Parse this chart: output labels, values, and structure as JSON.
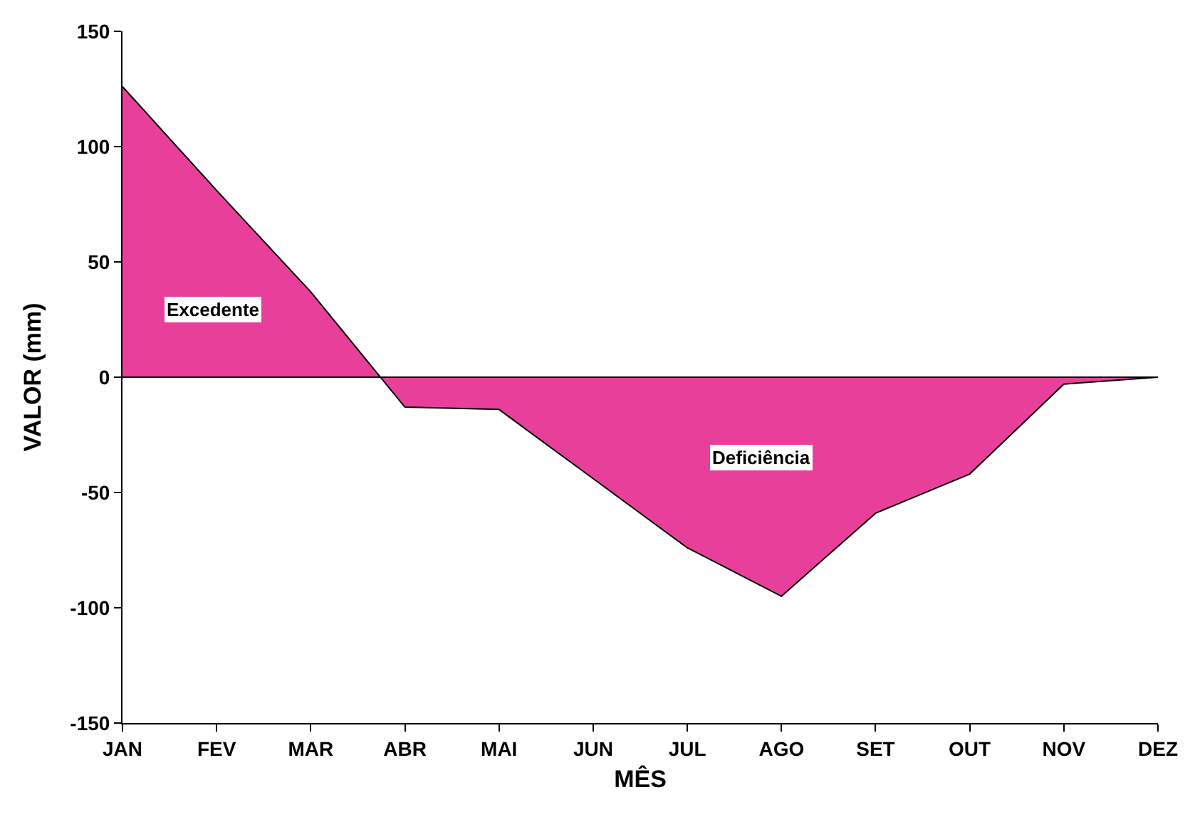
{
  "chart_data": {
    "type": "area",
    "xlabel": "MÊS",
    "ylabel": "VALOR (mm)",
    "categories": [
      "JAN",
      "FEV",
      "MAR",
      "ABR",
      "MAI",
      "JUN",
      "JUL",
      "AGO",
      "SET",
      "OUT",
      "NOV",
      "DEZ"
    ],
    "series": [
      {
        "color": "#e8409a",
        "values": [
          126,
          81,
          37,
          -13,
          -14,
          -44,
          -74,
          -95,
          -59,
          -42,
          -3,
          0
        ]
      }
    ],
    "ylim": [
      -150,
      150
    ],
    "yticks": [
      -150,
      -100,
      -50,
      0,
      50,
      100,
      150
    ],
    "ref_lines": [
      {
        "axis": "y",
        "value": 0,
        "color": "#000000"
      }
    ],
    "annotations": [
      "Excedente",
      "Deficiência"
    ],
    "marker": "none",
    "line_style": "solid"
  }
}
